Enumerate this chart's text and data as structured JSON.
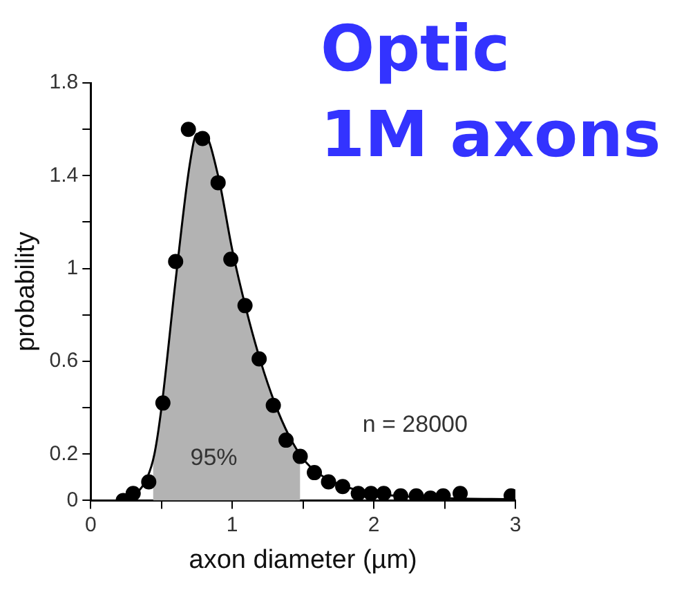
{
  "chart_data": {
    "type": "scatter",
    "title": "Optic\n1M axons",
    "xlabel": "axon diameter (µm)",
    "ylabel": "probability",
    "annotations": [
      "95%",
      "n = 28000"
    ],
    "xlim": [
      0,
      3
    ],
    "xticks": [
      0,
      {
        "value": 0.5,
        "label": null
      },
      1,
      {
        "value": 1.5,
        "label": null
      },
      2,
      {
        "value": 2.5,
        "label": null
      },
      3
    ],
    "ylim": [
      0,
      1.8
    ],
    "yticks": [
      0,
      0.2,
      {
        "value": 0.4,
        "label": null
      },
      0.6,
      {
        "value": 0.8,
        "label": null
      },
      1,
      {
        "value": 1.2,
        "label": null
      },
      1.4,
      {
        "value": 1.6,
        "label": null
      },
      1.8
    ],
    "grid": false,
    "legend": false,
    "marker": "circle",
    "series": [
      {
        "type": "area",
        "color": "#b3b3b3",
        "marker": "none",
        "x": [
          0.44,
          0.5,
          0.6,
          0.7,
          0.75,
          0.8,
          0.9,
          1.0,
          1.1,
          1.2,
          1.3,
          1.4,
          1.48
        ],
        "values": [
          0.18,
          0.4,
          0.95,
          1.45,
          1.58,
          1.58,
          1.4,
          1.08,
          0.82,
          0.6,
          0.42,
          0.28,
          0.19
        ]
      },
      {
        "type": "line",
        "color": "#000000",
        "marker": "none",
        "x": [
          0.2,
          0.3,
          0.4,
          0.45,
          0.5,
          0.6,
          0.7,
          0.75,
          0.8,
          0.9,
          1.0,
          1.1,
          1.2,
          1.3,
          1.4,
          1.5,
          1.6,
          1.8,
          2.0,
          2.5,
          3.0
        ],
        "values": [
          0,
          0.02,
          0.1,
          0.2,
          0.4,
          0.95,
          1.45,
          1.58,
          1.58,
          1.4,
          1.08,
          0.82,
          0.6,
          0.42,
          0.28,
          0.18,
          0.12,
          0.06,
          0.03,
          0.01,
          0.005
        ]
      },
      {
        "color": "#000000",
        "x": [
          0.23,
          0.3,
          0.41,
          0.51,
          0.6,
          0.69,
          0.79,
          0.9,
          0.99,
          1.09,
          1.19,
          1.29,
          1.38,
          1.48,
          1.58,
          1.68,
          1.78,
          1.89,
          1.98,
          2.07,
          2.19,
          2.3,
          2.4,
          2.49,
          2.61,
          2.97
        ],
        "values": [
          0,
          0.03,
          0.08,
          0.42,
          1.03,
          1.6,
          1.56,
          1.37,
          1.04,
          0.84,
          0.61,
          0.41,
          0.26,
          0.19,
          0.12,
          0.08,
          0.06,
          0.03,
          0.03,
          0.03,
          0.02,
          0.02,
          0.01,
          0.02,
          0.03,
          0.02
        ]
      }
    ]
  }
}
